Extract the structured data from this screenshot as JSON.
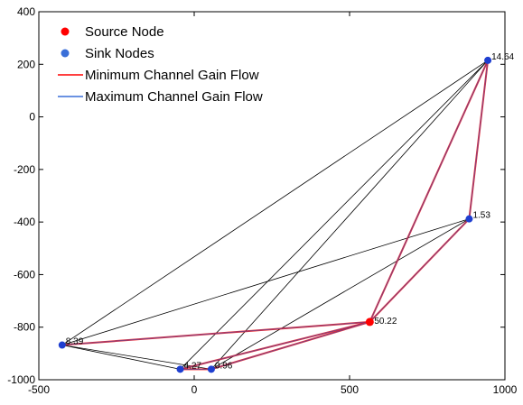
{
  "chart_data": {
    "type": "scatter",
    "title": "",
    "xlabel": "",
    "ylabel": "",
    "xlim": [
      -500,
      1000
    ],
    "ylim": [
      -1000,
      400
    ],
    "grid": false,
    "legend_position": "top-left",
    "x_ticks": [
      -500,
      0,
      500,
      1000
    ],
    "y_ticks": [
      400,
      200,
      0,
      -200,
      -400,
      -600,
      -800,
      -1000
    ],
    "x_tick_labels": [
      "-500",
      "0",
      "500",
      "1000"
    ],
    "y_tick_labels": [
      "400",
      "200",
      "0",
      "-200",
      "-400",
      "-600",
      "-800",
      "-1000"
    ],
    "legend": [
      {
        "label": "Source Node",
        "kind": "dot",
        "color": "#ff0000"
      },
      {
        "label": "Sink Nodes",
        "kind": "dot",
        "color": "#3a6fd8"
      },
      {
        "label": "Minimum Channel Gain Flow",
        "kind": "line",
        "color": "#ff0000"
      },
      {
        "label": "Maximum Channel Gain Flow",
        "kind": "line",
        "color": "#3a6fd8"
      }
    ],
    "source_node": {
      "id": "S",
      "x": 565,
      "y": -780,
      "label": "50.22"
    },
    "sink_nodes": [
      {
        "id": "A",
        "x": 945,
        "y": 215,
        "label": "14.64"
      },
      {
        "id": "B",
        "x": 885,
        "y": -388,
        "label": "1.53"
      },
      {
        "id": "C",
        "x": -425,
        "y": -868,
        "label": "8.39"
      },
      {
        "id": "D",
        "x": -45,
        "y": -960,
        "label": "4.27"
      },
      {
        "id": "E",
        "x": 55,
        "y": -960,
        "label": "0.96"
      }
    ],
    "edges": [
      [
        "A",
        "B"
      ],
      [
        "A",
        "C"
      ],
      [
        "A",
        "D"
      ],
      [
        "A",
        "E"
      ],
      [
        "A",
        "S"
      ],
      [
        "B",
        "C"
      ],
      [
        "B",
        "E"
      ],
      [
        "B",
        "S"
      ],
      [
        "C",
        "S"
      ],
      [
        "C",
        "D"
      ],
      [
        "C",
        "E"
      ],
      [
        "D",
        "E"
      ],
      [
        "D",
        "S"
      ],
      [
        "E",
        "S"
      ]
    ],
    "flow_edges": [
      [
        "A",
        "S"
      ],
      [
        "A",
        "B"
      ],
      [
        "B",
        "S"
      ],
      [
        "S",
        "C"
      ],
      [
        "S",
        "D"
      ],
      [
        "S",
        "E"
      ],
      [
        "D",
        "E"
      ]
    ],
    "colors": {
      "edge": "#000000",
      "flow_min": "#ff0000",
      "flow_max": "#3a6fd8",
      "flow_overlap": "#8a1f6d",
      "source": "#ff0000",
      "sink": "#1f3fd0"
    }
  }
}
